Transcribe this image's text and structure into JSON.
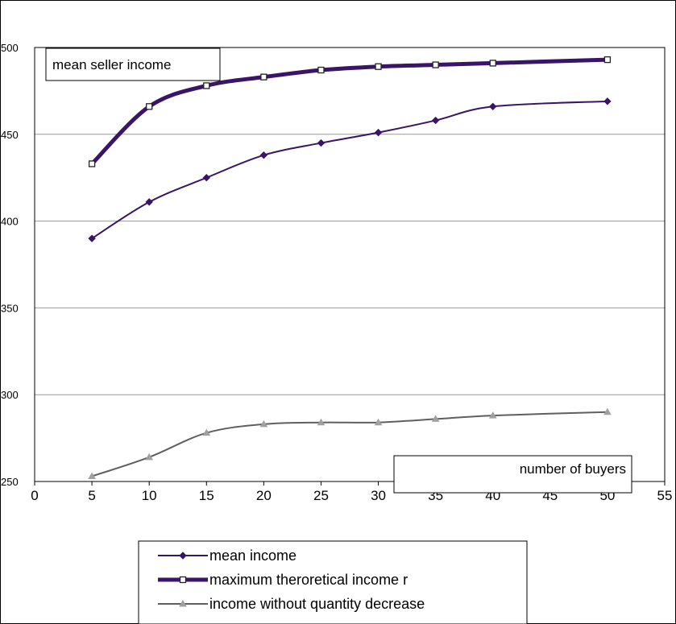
{
  "chart_data": {
    "type": "line",
    "title": "mean seller income",
    "xlabel": "number of buyers",
    "ylabel": "",
    "xlim": [
      0,
      55
    ],
    "ylim": [
      250,
      500
    ],
    "xticks": [
      0,
      5,
      10,
      15,
      20,
      25,
      30,
      35,
      40,
      45,
      50,
      55
    ],
    "yticks": [
      250,
      300,
      350,
      400,
      450,
      500
    ],
    "grid": "horizontal",
    "legend_position": "bottom",
    "series": [
      {
        "name": "mean income",
        "color": "#3a1466",
        "marker": "diamond",
        "width": "thin",
        "x": [
          5,
          10,
          15,
          20,
          25,
          30,
          35,
          40,
          50
        ],
        "values": [
          390,
          411,
          425,
          438,
          445,
          451,
          458,
          466,
          469
        ]
      },
      {
        "name": "maximum theroretical income r",
        "color": "#3a1466",
        "marker": "square",
        "width": "thick",
        "x": [
          5,
          10,
          15,
          20,
          25,
          30,
          35,
          40,
          50
        ],
        "values": [
          433,
          466,
          478,
          483,
          487,
          489,
          490,
          491,
          493
        ]
      },
      {
        "name": "income without quantity decrease",
        "color": "#5f5f5f",
        "marker": "triangle",
        "marker_color": "#a0a0a0",
        "width": "thin",
        "x": [
          5,
          10,
          15,
          20,
          25,
          30,
          35,
          40,
          50
        ],
        "values": [
          253,
          264,
          278,
          283,
          284,
          284,
          286,
          288,
          290
        ]
      }
    ]
  }
}
